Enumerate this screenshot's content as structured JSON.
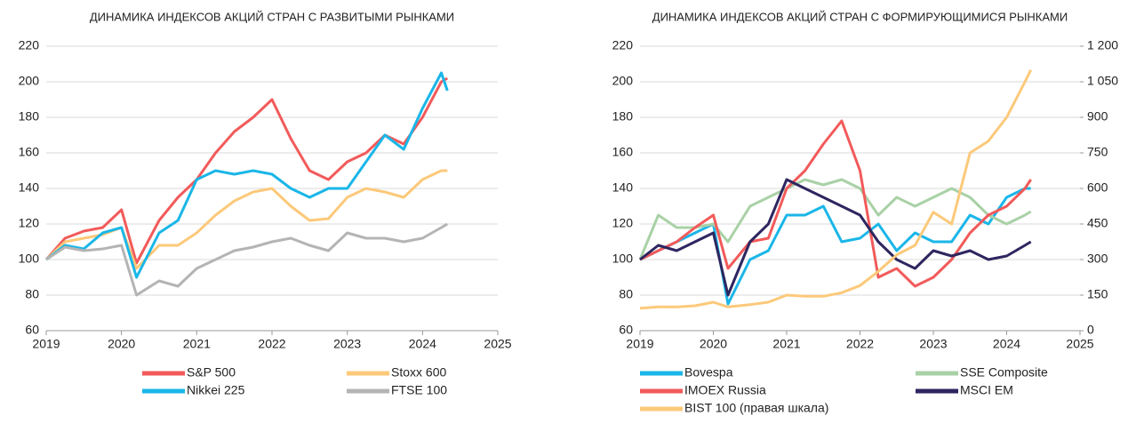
{
  "chart_data": [
    {
      "type": "line",
      "title": "ДИНАМИКА ИНДЕКСОВ АКЦИЙ СТРАН С РАЗВИТЫМИ РЫНКАМИ",
      "x": [
        2019,
        2019.25,
        2019.5,
        2019.75,
        2020,
        2020.2,
        2020.5,
        2020.75,
        2021,
        2021.25,
        2021.5,
        2021.75,
        2022,
        2022.25,
        2022.5,
        2022.75,
        2023,
        2023.25,
        2023.5,
        2023.75,
        2024,
        2024.25,
        2024.33
      ],
      "xlim": [
        2019,
        2025
      ],
      "xticks": [
        2019,
        2020,
        2021,
        2022,
        2023,
        2024,
        2025
      ],
      "ylim": [
        60,
        220
      ],
      "yticks": [
        60,
        80,
        100,
        120,
        140,
        160,
        180,
        200,
        220
      ],
      "grid": true,
      "legend": "bottom",
      "series": [
        {
          "name": "S&P 500",
          "color": "#f25a5a",
          "values": [
            100,
            112,
            116,
            118,
            128,
            98,
            122,
            135,
            145,
            160,
            172,
            180,
            190,
            168,
            150,
            145,
            155,
            160,
            170,
            165,
            180,
            200,
            202
          ]
        },
        {
          "name": "Stoxx 600",
          "color": "#fcc97a",
          "values": [
            100,
            110,
            112,
            114,
            118,
            95,
            108,
            108,
            115,
            125,
            133,
            138,
            140,
            130,
            122,
            123,
            135,
            140,
            138,
            135,
            145,
            150,
            150
          ]
        },
        {
          "name": "Nikkei 225",
          "color": "#1ab6e8",
          "values": [
            100,
            108,
            106,
            115,
            118,
            90,
            115,
            122,
            145,
            150,
            148,
            150,
            148,
            140,
            135,
            140,
            140,
            155,
            170,
            162,
            185,
            205,
            195
          ]
        },
        {
          "name": "FTSE 100",
          "color": "#b4b4b4",
          "values": [
            100,
            107,
            105,
            106,
            108,
            80,
            88,
            85,
            95,
            100,
            105,
            107,
            110,
            112,
            108,
            105,
            115,
            112,
            112,
            110,
            112,
            118,
            120
          ]
        }
      ]
    },
    {
      "type": "line",
      "title": "ДИНАМИКА ИНДЕКСОВ АКЦИЙ СТРАН С ФОРМИРУЮЩИМИСЯ РЫНКАМИ",
      "x": [
        2019,
        2019.25,
        2019.5,
        2019.75,
        2020,
        2020.2,
        2020.5,
        2020.75,
        2021,
        2021.25,
        2021.5,
        2021.75,
        2022,
        2022.25,
        2022.5,
        2022.75,
        2023,
        2023.25,
        2023.5,
        2023.75,
        2024,
        2024.25,
        2024.33
      ],
      "xlim": [
        2019,
        2025
      ],
      "xticks": [
        2019,
        2020,
        2021,
        2022,
        2023,
        2024,
        2025
      ],
      "ylim": [
        60,
        220
      ],
      "yticks": [
        60,
        80,
        100,
        120,
        140,
        160,
        180,
        200,
        220
      ],
      "y2lim": [
        0,
        1200
      ],
      "y2ticks": [
        0,
        150,
        300,
        450,
        600,
        750,
        900,
        {
          "value": 1050,
          "label": "1 050"
        },
        {
          "value": 1200,
          "label": "1 200"
        }
      ],
      "grid": true,
      "legend": "bottom",
      "series": [
        {
          "name": "Bovespa",
          "color": "#1ab6e8",
          "values": [
            100,
            105,
            110,
            115,
            120,
            75,
            100,
            105,
            125,
            125,
            130,
            110,
            112,
            120,
            105,
            115,
            110,
            110,
            125,
            120,
            135,
            140,
            140
          ]
        },
        {
          "name": "SSE Composite",
          "color": "#a9d1a6",
          "values": [
            100,
            125,
            118,
            118,
            120,
            110,
            130,
            135,
            140,
            145,
            142,
            145,
            140,
            125,
            135,
            130,
            135,
            140,
            135,
            125,
            120,
            125,
            127
          ]
        },
        {
          "name": "IMOEX Russia",
          "color": "#f25a5a",
          "values": [
            100,
            105,
            110,
            118,
            125,
            95,
            110,
            112,
            140,
            150,
            165,
            178,
            150,
            90,
            95,
            85,
            90,
            100,
            115,
            125,
            130,
            140,
            145
          ]
        },
        {
          "name": "MSCI EM",
          "color": "#2e2660",
          "values": [
            100,
            108,
            105,
            110,
            115,
            80,
            110,
            120,
            145,
            140,
            135,
            130,
            125,
            110,
            100,
            95,
            105,
            102,
            105,
            100,
            102,
            108,
            110
          ]
        },
        {
          "name": "BIST 100 (правая шкала)",
          "color": "#fcc97a",
          "axis": "y2",
          "values": [
            95,
            100,
            100,
            105,
            120,
            100,
            110,
            120,
            150,
            145,
            145,
            160,
            190,
            250,
            320,
            360,
            500,
            450,
            750,
            800,
            900,
            1050,
            1100
          ]
        }
      ]
    }
  ]
}
